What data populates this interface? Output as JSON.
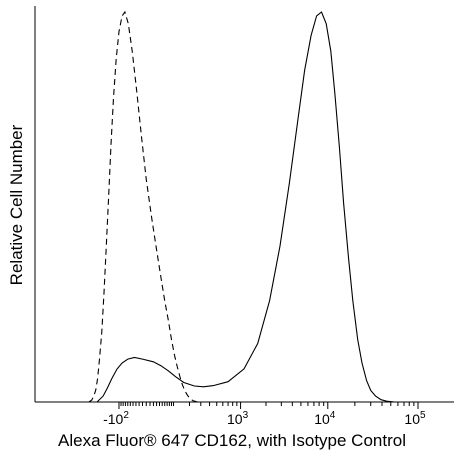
{
  "chart_data": {
    "type": "line",
    "title": "",
    "xlabel": "Alexa Fluor® 647 CD162, with Isotype Control",
    "ylabel": "Relative Cell Number",
    "x_scale": "biexponential",
    "x_ticks": [
      {
        "value": -100,
        "label": "-10",
        "exp": "2"
      },
      {
        "value": 1000,
        "label": "10",
        "exp": "3"
      },
      {
        "value": 10000,
        "label": "10",
        "exp": "4"
      },
      {
        "value": 100000,
        "label": "10",
        "exp": "5"
      }
    ],
    "y_range": [
      0,
      100
    ],
    "grid": false,
    "legend": "none",
    "series": [
      {
        "style": "dashed",
        "color": "#000000",
        "points": [
          [
            -330,
            0
          ],
          [
            -300,
            0.5
          ],
          [
            -280,
            1.5
          ],
          [
            -262,
            3
          ],
          [
            -245,
            6
          ],
          [
            -228,
            11
          ],
          [
            -210,
            18
          ],
          [
            -193,
            28
          ],
          [
            -176,
            40
          ],
          [
            -160,
            53
          ],
          [
            -145,
            66
          ],
          [
            -130,
            78
          ],
          [
            -115,
            88
          ],
          [
            -100,
            95
          ],
          [
            -85,
            99
          ],
          [
            -72,
            100
          ],
          [
            -58,
            97
          ],
          [
            -43,
            90
          ],
          [
            -28,
            80
          ],
          [
            -13,
            68
          ],
          [
            0,
            57
          ],
          [
            15,
            47
          ],
          [
            30,
            39
          ],
          [
            45,
            32
          ],
          [
            60,
            26
          ],
          [
            75,
            21
          ],
          [
            90,
            16
          ],
          [
            105,
            12
          ],
          [
            120,
            9
          ],
          [
            135,
            6.5
          ],
          [
            150,
            4.5
          ],
          [
            165,
            3
          ],
          [
            180,
            2
          ],
          [
            200,
            1
          ],
          [
            230,
            0.3
          ],
          [
            270,
            0
          ]
        ]
      },
      {
        "style": "solid",
        "color": "#000000",
        "points": [
          [
            -250,
            0
          ],
          [
            -200,
            1.5
          ],
          [
            -170,
            3.5
          ],
          [
            -140,
            6
          ],
          [
            -110,
            8.5
          ],
          [
            -85,
            10
          ],
          [
            -60,
            11
          ],
          [
            -35,
            11.4
          ],
          [
            -10,
            11
          ],
          [
            20,
            10.3
          ],
          [
            45,
            9.3
          ],
          [
            75,
            8
          ],
          [
            110,
            6.5
          ],
          [
            160,
            5
          ],
          [
            240,
            4.1
          ],
          [
            330,
            3.9
          ],
          [
            450,
            4.2
          ],
          [
            700,
            5.2
          ],
          [
            1100,
            8.5
          ],
          [
            1600,
            15
          ],
          [
            2200,
            26
          ],
          [
            2900,
            40
          ],
          [
            3700,
            56
          ],
          [
            4600,
            72
          ],
          [
            5500,
            85
          ],
          [
            6500,
            94
          ],
          [
            7500,
            99
          ],
          [
            8500,
            100
          ],
          [
            9600,
            97
          ],
          [
            10800,
            90
          ],
          [
            12000,
            79
          ],
          [
            13500,
            65
          ],
          [
            15000,
            51
          ],
          [
            17000,
            37
          ],
          [
            19000,
            26
          ],
          [
            21500,
            16
          ],
          [
            24000,
            10
          ],
          [
            27000,
            5.5
          ],
          [
            30000,
            3
          ],
          [
            34000,
            1.5
          ],
          [
            39000,
            0.6
          ],
          [
            45000,
            0.2
          ],
          [
            55000,
            0
          ],
          [
            80000,
            0
          ],
          [
            120000,
            0
          ]
        ]
      }
    ]
  }
}
